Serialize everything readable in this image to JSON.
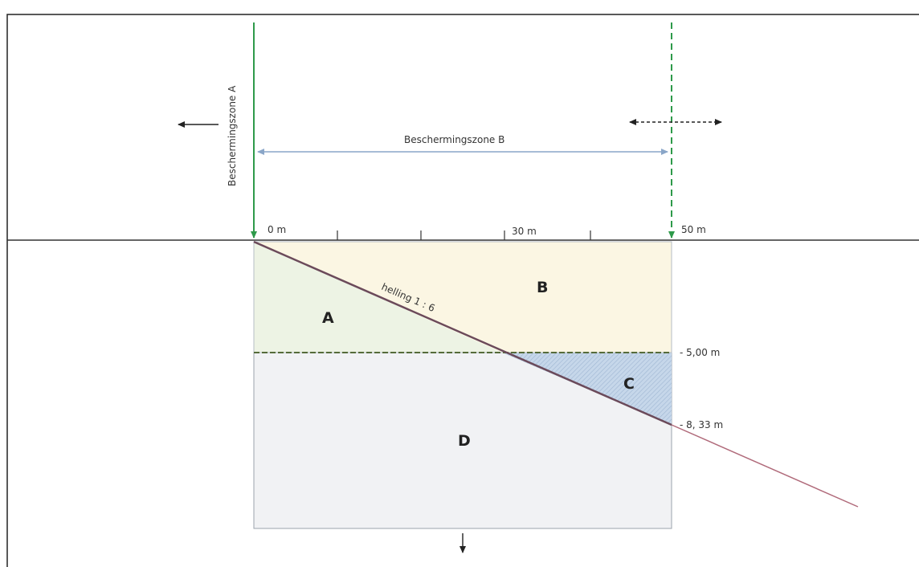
{
  "labels": {
    "zone_a_vertical": "Beschermingszone A",
    "zone_b": "Beschermingszone B",
    "tick_0": "0 m",
    "tick_30": "30 m",
    "tick_50": "50 m",
    "slope": "helling 1 : 6",
    "depth_5": "- 5,00 m",
    "depth_833": "- 8, 33 m"
  },
  "zones": {
    "a": "A",
    "b": "B",
    "c": "C",
    "d": "D"
  },
  "colors": {
    "zone_a": "#edf3e4",
    "zone_b": "#fbf6e3",
    "zone_c": "#c6d7ea",
    "zone_d": "#f1f2f4",
    "boundary_a": "#2e9a4a",
    "boundary_b": "#2e9a4a",
    "span_arrow": "#8aa6c8",
    "slope_line": "#7a4a5e",
    "ground": "#333333"
  }
}
